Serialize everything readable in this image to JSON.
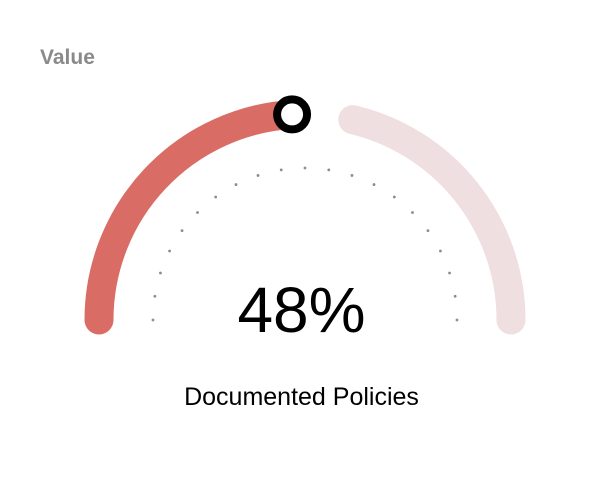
{
  "header": {
    "label": "Value"
  },
  "gauge": {
    "value_text": "48%",
    "value_fraction": 0.48,
    "caption": "Documented Policies",
    "colors": {
      "filled": "#d96d66",
      "track": "#efdfe0",
      "knob_stroke": "#000000",
      "knob_fill": "#ffffff",
      "dots": "#8c8c8c"
    }
  }
}
